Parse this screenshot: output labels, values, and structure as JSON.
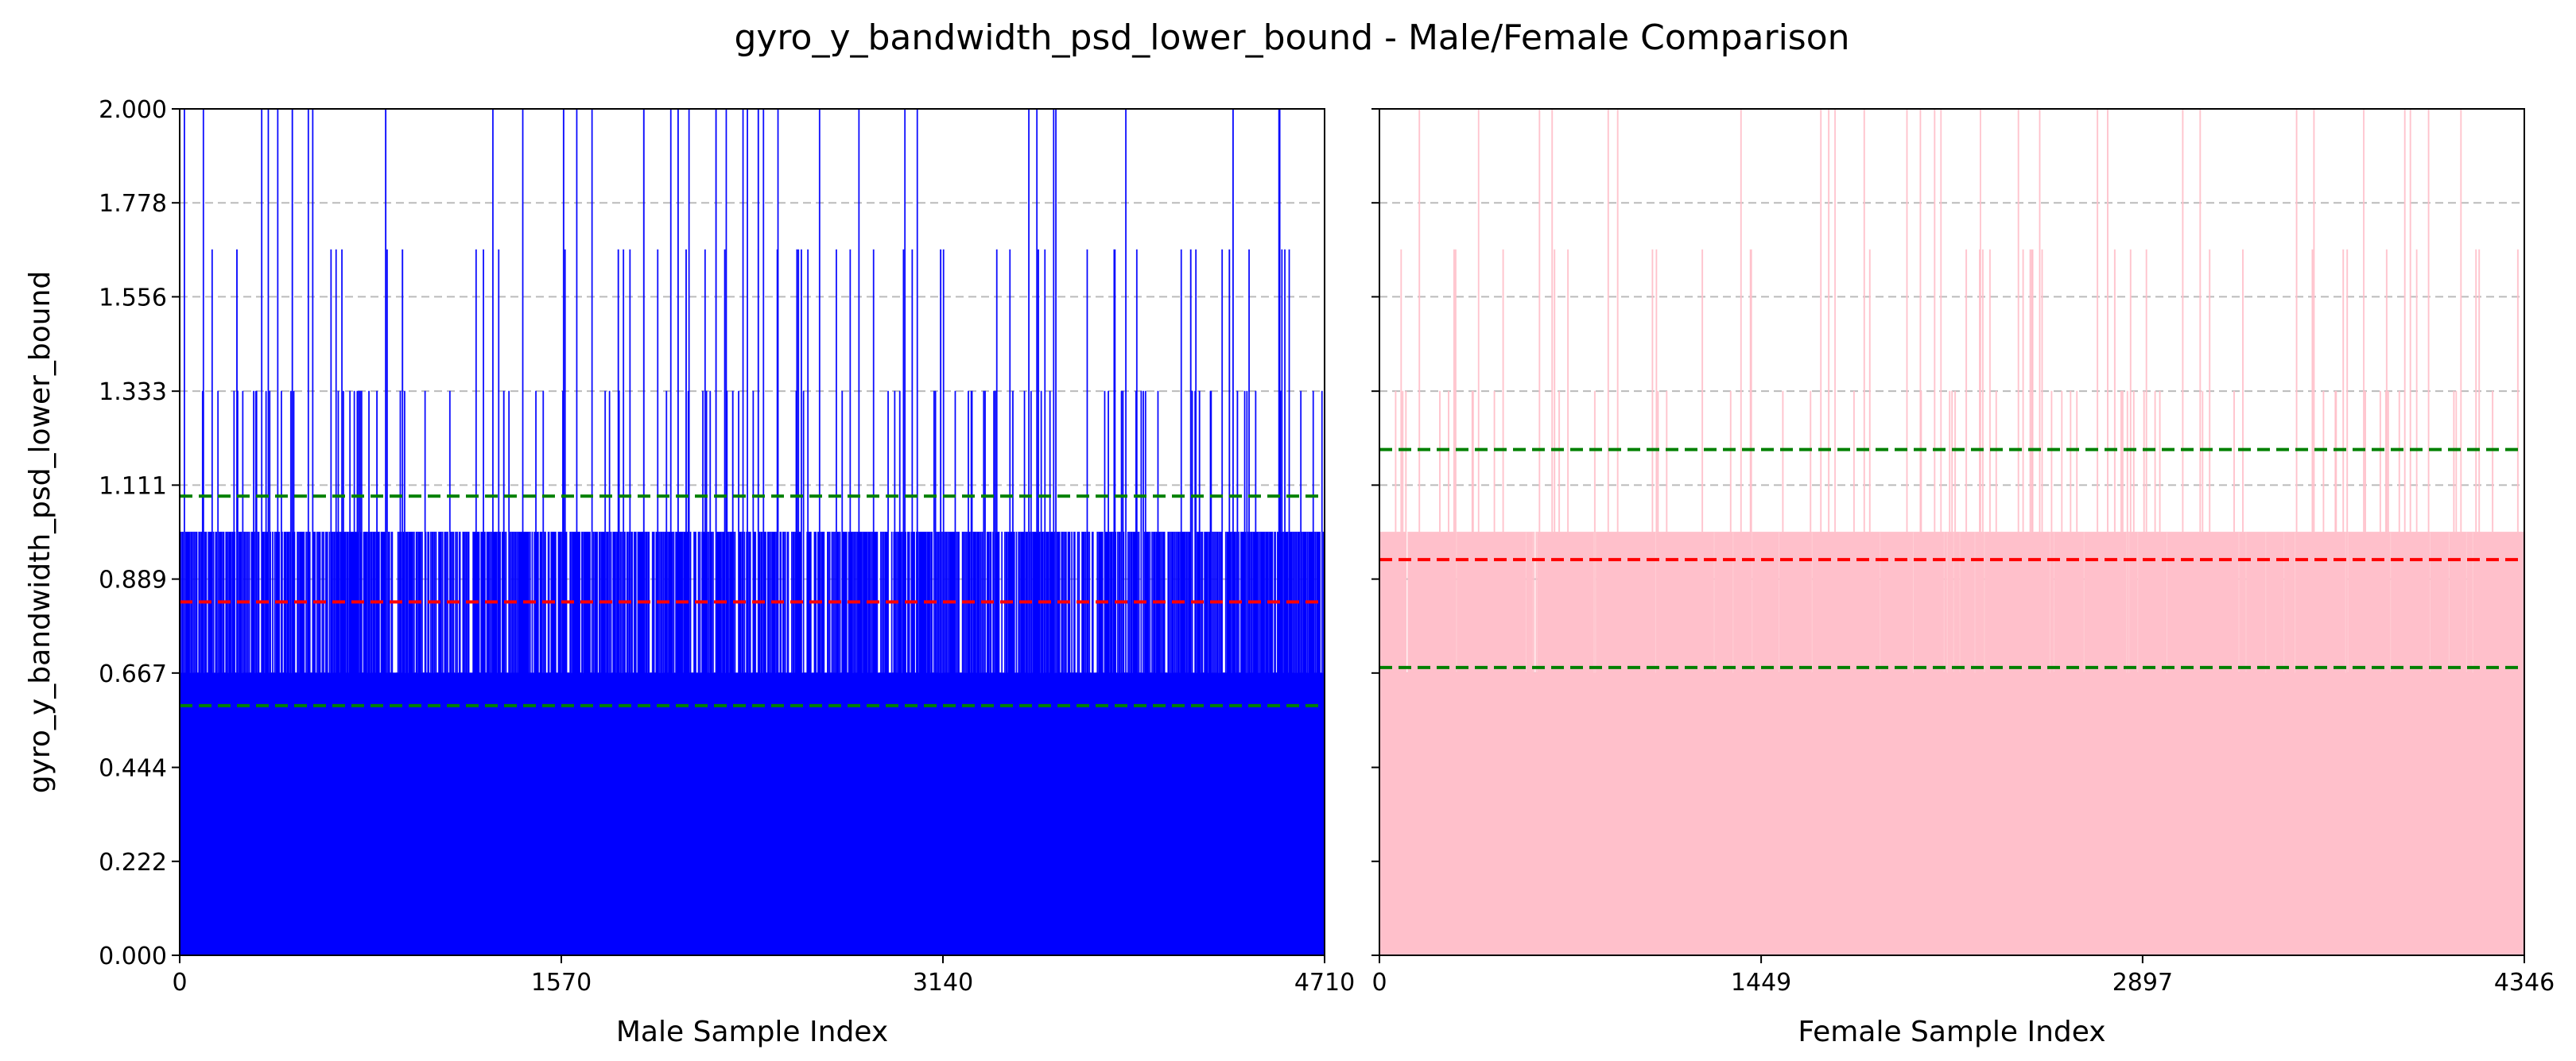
{
  "title": "gyro_y_bandwidth_psd_lower_bound - Male/Female Comparison",
  "colors": {
    "male": "#0000ff",
    "female": "#ffc0cb",
    "mean_line": "#ff0000",
    "std_line": "#008000",
    "grid": "#bbbbbb"
  },
  "chart_data": [
    {
      "type": "area",
      "name": "male-panel",
      "xlabel": "Male Sample Index",
      "ylabel": "gyro_y_bandwidth_psd_lower_bound",
      "xlim": [
        0,
        4710
      ],
      "ylim": [
        0,
        2.0
      ],
      "xticks": [
        0,
        1570,
        3140,
        4710
      ],
      "yticks": [
        "0.000",
        "0.222",
        "0.444",
        "0.667",
        "0.889",
        "1.111",
        "1.333",
        "1.556",
        "1.778",
        "2.000"
      ],
      "grid": "y-dashed",
      "value_levels": [
        0.667,
        1.0,
        1.333,
        1.667,
        2.0
      ],
      "typical_range": [
        0.667,
        1.0
      ],
      "mean": 0.835,
      "std_lines": [
        0.59,
        1.085
      ],
      "sample_count": 4710
    },
    {
      "type": "area",
      "name": "female-panel",
      "xlabel": "Female Sample Index",
      "ylabel": "",
      "xlim": [
        0,
        4346
      ],
      "ylim": [
        0,
        2.0
      ],
      "xticks": [
        0,
        1449,
        2897,
        4346
      ],
      "yticks": [
        "0.000",
        "0.222",
        "0.444",
        "0.667",
        "0.889",
        "1.111",
        "1.333",
        "1.556",
        "1.778",
        "2.000"
      ],
      "grid": "y-dashed",
      "value_levels": [
        0.667,
        1.0,
        1.333,
        1.667,
        2.0
      ],
      "typical_range": [
        0.667,
        1.0
      ],
      "mean": 0.935,
      "std_lines": [
        0.68,
        1.195
      ],
      "sample_count": 4346
    }
  ]
}
